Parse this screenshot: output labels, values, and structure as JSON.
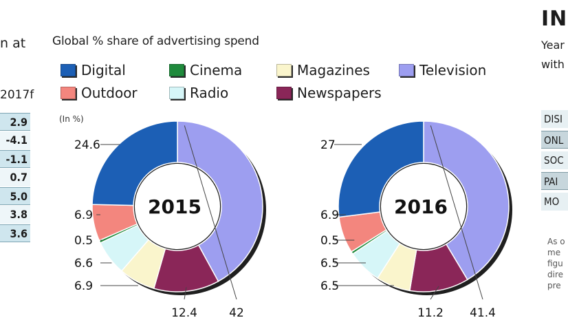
{
  "left_panel": {
    "fragment": "n at",
    "year_fragment": "2017f",
    "values": [
      "2.9",
      "-4.1",
      "-1.1",
      "0.7",
      "5.0",
      "3.8",
      "3.6"
    ]
  },
  "right_panel": {
    "title_fragment": "INS",
    "sub1": "Year",
    "sub2": "with",
    "rows": [
      "DISI",
      "ONL",
      "SOC",
      "PAI",
      "MO"
    ],
    "note": [
      "As o",
      "me",
      "figu",
      "dire",
      "pre"
    ]
  },
  "chart_data": {
    "type": "pie",
    "title": "Global % share of advertising spend",
    "unit_label": "(In %)",
    "legend": [
      {
        "key": "digital",
        "label": "Digital",
        "color": "#1c5fb5"
      },
      {
        "key": "cinema",
        "label": "Cinema",
        "color": "#1f8a3c"
      },
      {
        "key": "magazines",
        "label": "Magazines",
        "color": "#faf5cc"
      },
      {
        "key": "television",
        "label": "Television",
        "color": "#9d9ef0"
      },
      {
        "key": "outdoor",
        "label": "Outdoor",
        "color": "#f3867e"
      },
      {
        "key": "radio",
        "label": "Radio",
        "color": "#d6f6f8"
      },
      {
        "key": "newspapers",
        "label": "Newspapers",
        "color": "#8a2658"
      }
    ],
    "charts": [
      {
        "year": "2015",
        "slices": [
          {
            "key": "digital",
            "value": 24.6,
            "label": "24.6"
          },
          {
            "key": "outdoor",
            "value": 6.9,
            "label": "6.9"
          },
          {
            "key": "cinema",
            "value": 0.5,
            "label": "0.5"
          },
          {
            "key": "radio",
            "value": 6.6,
            "label": "6.6"
          },
          {
            "key": "magazines",
            "value": 6.9,
            "label": "6.9"
          },
          {
            "key": "newspapers",
            "value": 12.4,
            "label": "12.4"
          },
          {
            "key": "television",
            "value": 42,
            "label": "42"
          }
        ]
      },
      {
        "year": "2016",
        "slices": [
          {
            "key": "digital",
            "value": 27,
            "label": "27"
          },
          {
            "key": "outdoor",
            "value": 6.9,
            "label": "6.9"
          },
          {
            "key": "cinema",
            "value": 0.5,
            "label": "0.5"
          },
          {
            "key": "radio",
            "value": 6.5,
            "label": "6.5"
          },
          {
            "key": "magazines",
            "value": 6.5,
            "label": "6.5"
          },
          {
            "key": "newspapers",
            "value": 11.2,
            "label": "11.2"
          },
          {
            "key": "television",
            "value": 41.4,
            "label": "41.4"
          }
        ]
      }
    ]
  }
}
